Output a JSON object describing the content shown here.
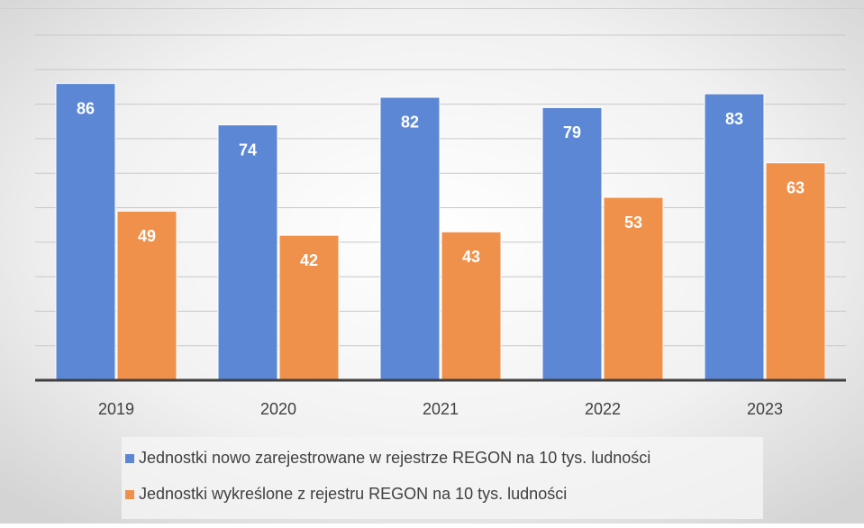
{
  "chart_data": {
    "type": "bar",
    "categories": [
      "2019",
      "2020",
      "2021",
      "2022",
      "2023"
    ],
    "series": [
      {
        "name": "Jednostki nowo zarejestrowane w rejestrze REGON na 10 tys. ludności",
        "color": "#5b87d5",
        "values": [
          86,
          74,
          82,
          79,
          83
        ]
      },
      {
        "name": "Jednostki wykreślone z rejestru REGON na 10 tys. ludności",
        "color": "#f0914b",
        "values": [
          49,
          42,
          43,
          53,
          63
        ]
      }
    ],
    "ylim": [
      0,
      100
    ],
    "yticks": [
      0,
      10,
      20,
      30,
      40,
      50,
      60,
      70,
      80,
      90,
      100
    ],
    "grid": true
  }
}
